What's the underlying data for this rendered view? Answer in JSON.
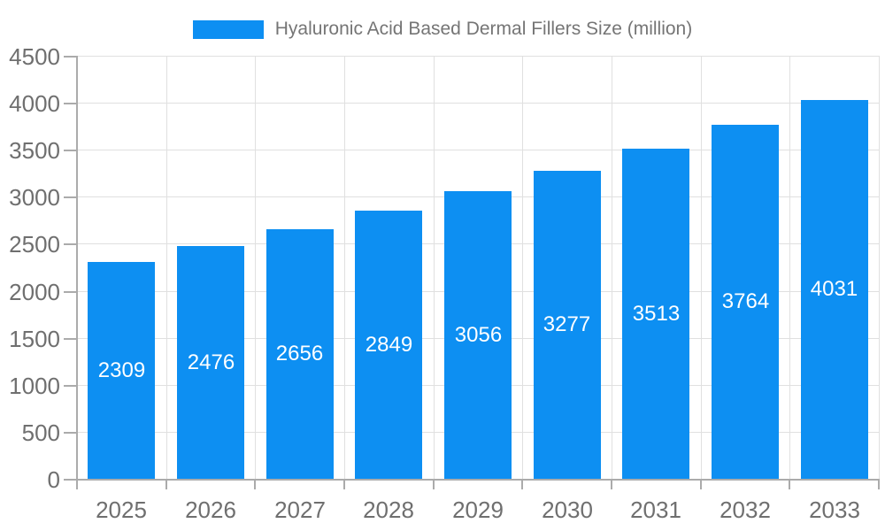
{
  "chart_data": {
    "type": "bar",
    "title": "",
    "legend_label": "Hyaluronic Acid Based Dermal Fillers Size (million)",
    "categories": [
      "2025",
      "2026",
      "2027",
      "2028",
      "2029",
      "2030",
      "2031",
      "2032",
      "2033"
    ],
    "values": [
      2309,
      2476,
      2656,
      2849,
      3056,
      3277,
      3513,
      3764,
      4031
    ],
    "xlabel": "",
    "ylabel": "",
    "ylim": [
      0,
      4500
    ],
    "ytick_step": 500,
    "grid": true,
    "legend_position": "top",
    "bar_labels_inside": true
  },
  "colors": {
    "bar_fill": "#0d8ff2",
    "bar_label_text": "#ffffff",
    "axis_text": "#6f6f6f",
    "legend_text": "#757575",
    "gridline": "#e0e0e0",
    "axis_line": "#ababab"
  }
}
